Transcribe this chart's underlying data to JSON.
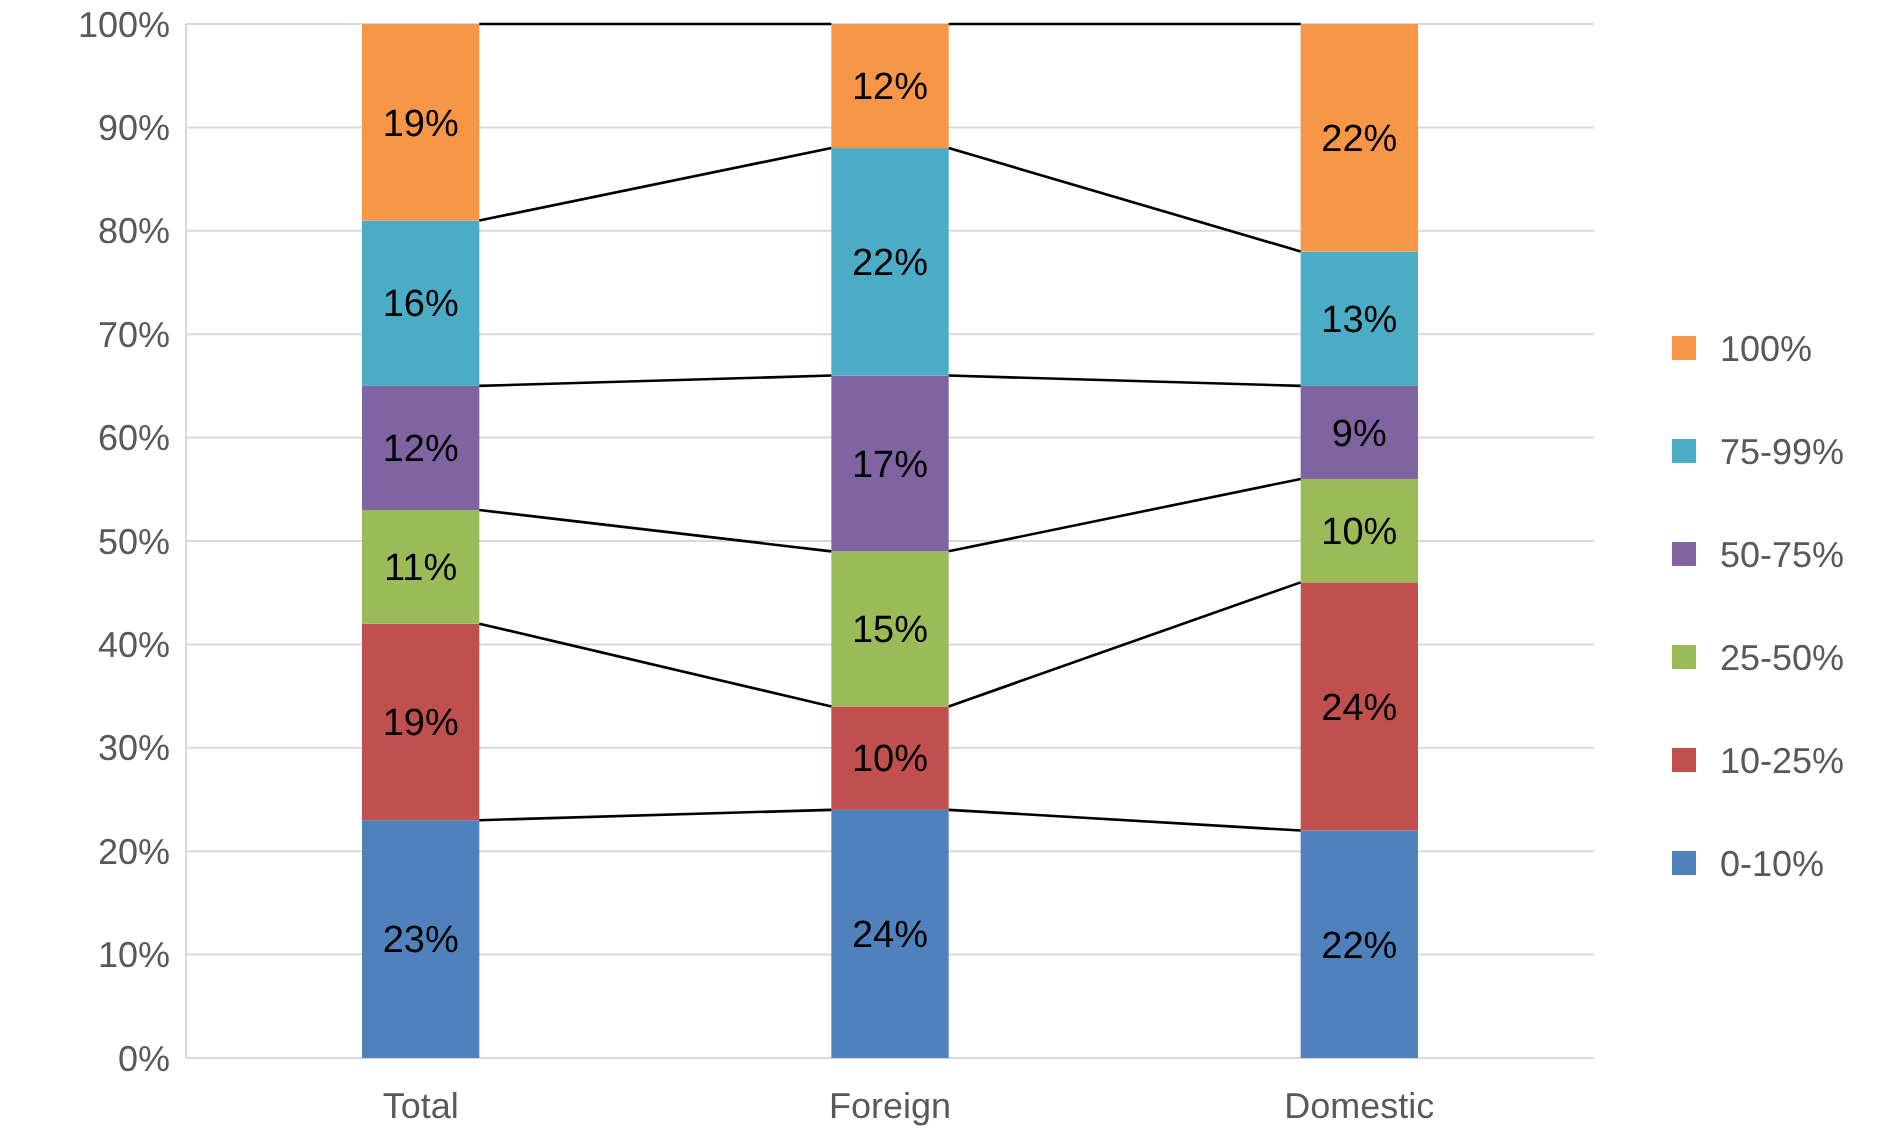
{
  "chart_data": {
    "type": "bar",
    "stacked": true,
    "categories": [
      "Total",
      "Foreign",
      "Domestic"
    ],
    "series": [
      {
        "name": "0-10%",
        "color": "#4f81bd",
        "values": [
          23,
          24,
          22
        ],
        "value_labels": [
          "23%",
          "24%",
          "22%"
        ]
      },
      {
        "name": "10-25%",
        "color": "#c0504d",
        "values": [
          19,
          10,
          24
        ],
        "value_labels": [
          "19%",
          "10%",
          "24%"
        ]
      },
      {
        "name": "25-50%",
        "color": "#9bbb59",
        "values": [
          11,
          15,
          10
        ],
        "value_labels": [
          "11%",
          "15%",
          "10%"
        ]
      },
      {
        "name": "50-75%",
        "color": "#8064a2",
        "values": [
          12,
          17,
          9
        ],
        "value_labels": [
          "12%",
          "17%",
          "9%"
        ]
      },
      {
        "name": "75-99%",
        "color": "#4bacc6",
        "values": [
          16,
          22,
          13
        ],
        "value_labels": [
          "16%",
          "22%",
          "13%"
        ]
      },
      {
        "name": "100%",
        "color": "#f79646",
        "values": [
          19,
          12,
          22
        ],
        "value_labels": [
          "19%",
          "12%",
          "22%"
        ]
      }
    ],
    "ylim": [
      0,
      100
    ],
    "yticks": [
      {
        "value": 0,
        "label": "0%"
      },
      {
        "value": 10,
        "label": "10%"
      },
      {
        "value": 20,
        "label": "20%"
      },
      {
        "value": 30,
        "label": "30%"
      },
      {
        "value": 40,
        "label": "40%"
      },
      {
        "value": 50,
        "label": "50%"
      },
      {
        "value": 60,
        "label": "60%"
      },
      {
        "value": 70,
        "label": "70%"
      },
      {
        "value": 80,
        "label": "80%"
      },
      {
        "value": 90,
        "label": "90%"
      },
      {
        "value": 100,
        "label": "100%"
      }
    ],
    "grid": "y",
    "legend": "right"
  }
}
